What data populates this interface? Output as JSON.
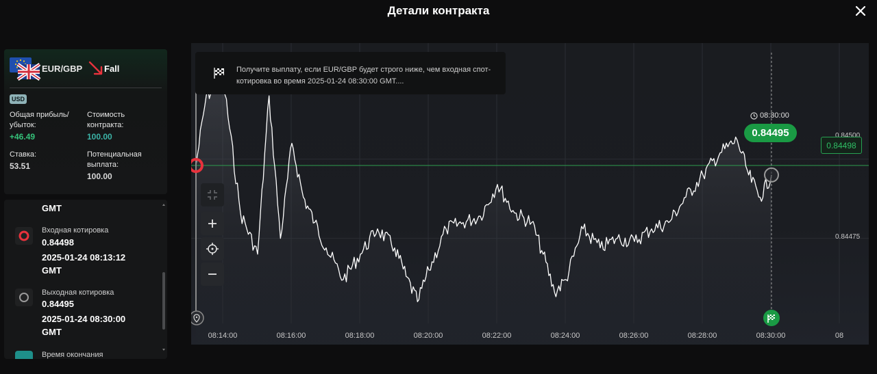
{
  "modal": {
    "title": "Детали контракта"
  },
  "contract": {
    "pair": "EUR/GBP",
    "direction": "Fall",
    "currency": "USD",
    "profit_label": "Общая прибыль/ убыток:",
    "profit_value": "+46.49",
    "cost_label": "Стоимость контракта:",
    "cost_value": "100.00",
    "stake_label": "Ставка:",
    "stake_value": "53.51",
    "payout_label": "Потенциальная выплата:",
    "payout_value": "100.00"
  },
  "timeline": {
    "top_partial": "GMT",
    "entry": {
      "label": "Входная котировка",
      "price": "0.84498",
      "time": "2025-01-24 08:13:12",
      "tz": "GMT"
    },
    "exit": {
      "label": "Выходная котировка",
      "price": "0.84495",
      "time": "2025-01-24 08:30:00",
      "tz": "GMT"
    },
    "end_partial": "Время окончания"
  },
  "chart": {
    "info_text": "Получите выплату, если EUR/GBP будет строго ниже, чем входная спот-котировка во время 2025-01-24 08:30:00 GMT....",
    "expiry_time": "08:30:00",
    "current_price": "0.84495",
    "entry_price_tag": "0.84498",
    "y_labels": {
      "top": "0.84500",
      "mid": "0.84475"
    },
    "x_labels": [
      "08:14:00",
      "08:16:00",
      "08:18:00",
      "08:20:00",
      "08:22:00",
      "08:24:00",
      "08:26:00",
      "08:28:00",
      "08:30:00",
      "08"
    ],
    "colors": {
      "entry_line": "#2e9e4f",
      "price_line": "#ffffff",
      "accent_green": "#1a9a44",
      "entry_marker": "#e8323c"
    }
  },
  "chart_data": {
    "type": "line",
    "title": "",
    "xlabel": "",
    "ylabel": "",
    "x": [
      "08:13:12",
      "08:13:30",
      "08:14:00",
      "08:14:30",
      "08:15:00",
      "08:15:20",
      "08:15:40",
      "08:16:00",
      "08:16:20",
      "08:16:40",
      "08:17:00",
      "08:17:30",
      "08:18:00",
      "08:18:30",
      "08:19:00",
      "08:19:20",
      "08:19:40",
      "08:20:00",
      "08:20:30",
      "08:21:00",
      "08:21:30",
      "08:22:00",
      "08:22:30",
      "08:23:00",
      "08:23:20",
      "08:23:40",
      "08:24:00",
      "08:24:30",
      "08:25:00",
      "08:25:30",
      "08:26:00",
      "08:26:30",
      "08:27:00",
      "08:27:30",
      "08:28:00",
      "08:28:30",
      "08:29:00",
      "08:29:20",
      "08:29:40",
      "08:30:00"
    ],
    "y": [
      0.84498,
      0.8452,
      0.84525,
      0.84483,
      0.8447,
      0.8452,
      0.84475,
      0.84505,
      0.84488,
      0.8448,
      0.84472,
      0.84462,
      0.8447,
      0.84478,
      0.84472,
      0.84463,
      0.84455,
      0.84465,
      0.84478,
      0.8448,
      0.84482,
      0.84492,
      0.84483,
      0.8448,
      0.8447,
      0.84458,
      0.84462,
      0.84478,
      0.84472,
      0.84475,
      0.84474,
      0.84478,
      0.8448,
      0.84488,
      0.84495,
      0.84502,
      0.84506,
      0.84495,
      0.84488,
      0.84495
    ],
    "entry_price": 0.84498,
    "exit_price": 0.84495,
    "y_ticks": [
      0.845,
      0.84475
    ],
    "ylim": [
      0.84446,
      0.84528
    ],
    "grid": true,
    "legend": "none"
  }
}
